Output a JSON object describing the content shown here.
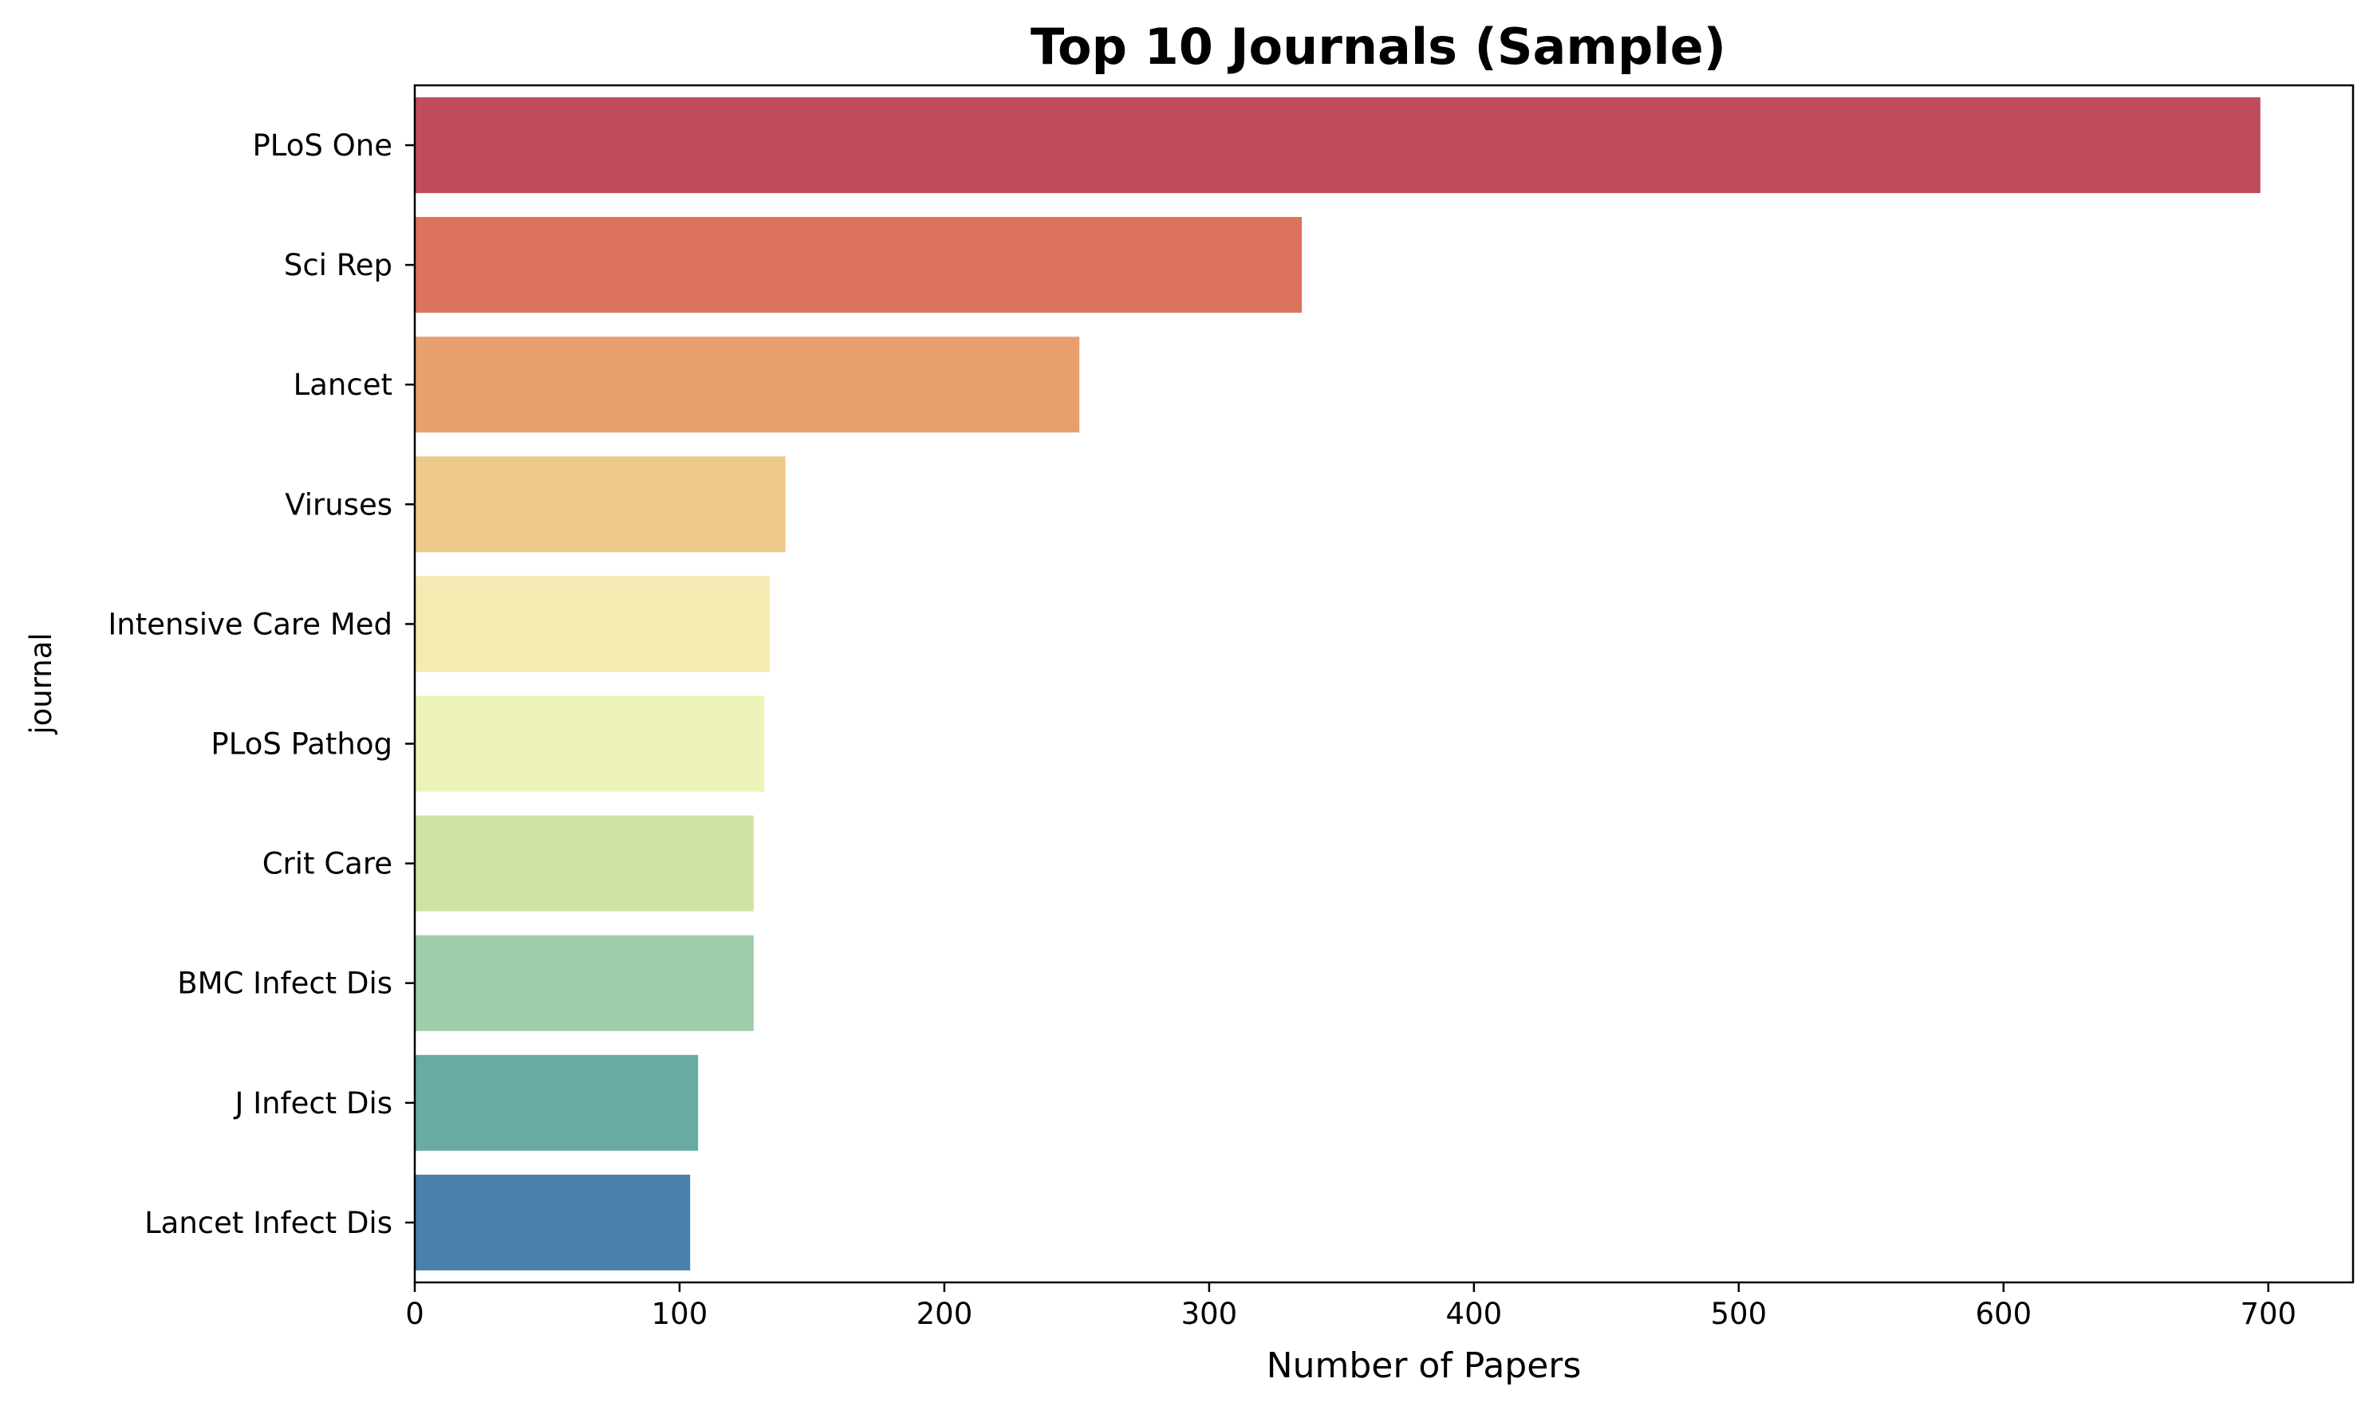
{
  "chart_data": {
    "type": "bar",
    "orientation": "horizontal",
    "title": "Top 10 Journals (Sample)",
    "xlabel": "Number of Papers",
    "ylabel": "journal",
    "categories": [
      "PLoS One",
      "Sci Rep",
      "Lancet",
      "Viruses",
      "Intensive Care Med",
      "PLoS Pathog",
      "Crit Care",
      "BMC Infect Dis",
      "J Infect Dis",
      "Lancet Infect Dis"
    ],
    "values": [
      697,
      335,
      251,
      140,
      134,
      132,
      128,
      128,
      107,
      104
    ],
    "colors": [
      "#c04b5d",
      "#dc735e",
      "#e89f6e",
      "#edca8b",
      "#f5eab1",
      "#edf2b9",
      "#d0e3a4",
      "#9ecda9",
      "#68aba3",
      "#4980ac"
    ],
    "xlim": [
      0,
      732
    ],
    "xticks": [
      0,
      100,
      200,
      300,
      400,
      500,
      600,
      700
    ],
    "grid": false
  }
}
